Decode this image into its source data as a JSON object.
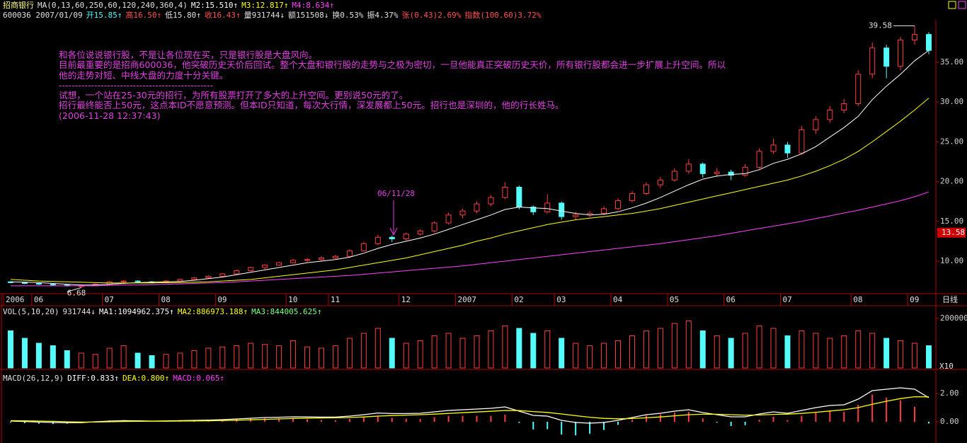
{
  "chart_data": [
    {
      "type": "candlestick",
      "header": [
        [
          {
            "text": "招商银行",
            "color": "#ffff80"
          },
          {
            "text": "MA(0,13,60,250,60,120,240,360,4)",
            "color": "#e0e0e0"
          },
          {
            "text": "M2:15.510↑",
            "color": "#ffffff"
          },
          {
            "text": "M3:12.817↑",
            "color": "#ffff00"
          },
          {
            "text": "M4:8.634↑",
            "color": "#ff40ff"
          }
        ],
        [
          {
            "text": "600036 2007/01/09",
            "color": "#e0e0e0"
          },
          {
            "text": "开15.85↑",
            "color": "#54fcfc"
          },
          {
            "text": "高16.50↑",
            "color": "#ff5050"
          },
          {
            "text": "低15.80↑",
            "color": "#e0e0e0"
          },
          {
            "text": "收16.43↑",
            "color": "#ff5050"
          },
          {
            "text": "量931744↓",
            "color": "#e0e0e0"
          },
          {
            "text": "额151508↓",
            "color": "#e0e0e0"
          },
          {
            "text": "换0.53%",
            "color": "#e0e0e0"
          },
          {
            "text": "振4.37%",
            "color": "#e0e0e0"
          },
          {
            "text": "张(0.43)2.69%",
            "color": "#ff5050"
          },
          {
            "text": "指数(100.60)3.72%",
            "color": "#ff5050"
          }
        ]
      ],
      "comment_lines": [
        "和各位说说银行股，不是让各位现在买，只是银行股是大盘风向。",
        "目前最重要的是招商600036，他突破历史天价后回试。整个大盘和银行股的走势与之极为密切，一旦他能真正突破历史天价，所有银行股都会进一步扩展上升空间。所以",
        "他的走势对短、中线大盘的力度十分关键。",
        "------------------------------------------------",
        "试想，一个站在25-30元的招行，为所有股票打开了多大的上升空间。更别说50元的了。",
        "招行最终能否上50元，这点本ID不愿意预测。但本ID只知道，每次大行情，深发展都上50元。招行也是深圳的，他的行长姓马。",
        "(2006-11-28 12:37:43)"
      ],
      "callout": "06/11/28",
      "period_label": "日线",
      "high_label": "39.58",
      "low_label": "6.68",
      "last_price": {
        "value": 13.58,
        "label": "13.58"
      },
      "categories": [
        "2006",
        null,
        "06",
        null,
        null,
        null,
        null,
        "07",
        null,
        null,
        null,
        "08",
        null,
        null,
        null,
        "09",
        null,
        null,
        null,
        null,
        "10",
        null,
        null,
        "11",
        null,
        null,
        null,
        null,
        "12",
        null,
        null,
        null,
        "2007",
        null,
        null,
        null,
        "02",
        null,
        null,
        "03",
        null,
        null,
        null,
        "04",
        null,
        null,
        null,
        "05",
        null,
        null,
        null,
        "06",
        null,
        null,
        null,
        "07",
        null,
        null,
        null,
        null,
        "08",
        null,
        null,
        null,
        "09",
        null
      ],
      "open": [
        7.4,
        7.3,
        7.2,
        7.1,
        7.0,
        6.9,
        6.9,
        7.1,
        7.4,
        7.5,
        7.4,
        7.3,
        7.5,
        7.7,
        7.9,
        8.1,
        8.4,
        8.8,
        9.2,
        9.5,
        9.8,
        10.1,
        10.2,
        10.4,
        10.6,
        11.3,
        12.2,
        13.0,
        12.8,
        13.4,
        13.8,
        14.8,
        15.8,
        16.3,
        17.2,
        18.0,
        19.3,
        16.8,
        16.2,
        17.3,
        15.6,
        15.8,
        16.0,
        16.6,
        17.6,
        18.5,
        19.6,
        20.2,
        21.3,
        22.2,
        21.0,
        21.2,
        20.8,
        21.8,
        23.8,
        24.6,
        23.6,
        26.5,
        27.8,
        29.0,
        29.8,
        33.5,
        36.8,
        34.5,
        37.8,
        38.5
      ],
      "high": [
        7.5,
        7.4,
        7.3,
        7.2,
        7.1,
        7.0,
        7.2,
        7.5,
        7.6,
        7.6,
        7.5,
        7.6,
        7.8,
        8.0,
        8.2,
        8.5,
        8.9,
        9.3,
        9.6,
        9.9,
        10.3,
        10.4,
        10.6,
        10.8,
        11.5,
        12.4,
        13.3,
        13.2,
        13.6,
        14.0,
        15.0,
        16.1,
        16.6,
        17.5,
        18.3,
        19.9,
        19.5,
        17.0,
        18.4,
        17.5,
        16.2,
        16.3,
        16.9,
        17.9,
        18.8,
        19.9,
        20.6,
        21.7,
        22.8,
        22.4,
        21.7,
        21.5,
        22.2,
        24.2,
        25.4,
        25.0,
        27.0,
        28.2,
        29.5,
        30.4,
        34.0,
        37.5,
        37.2,
        38.2,
        39.58,
        38.8
      ],
      "low": [
        7.2,
        7.1,
        7.0,
        6.9,
        6.8,
        6.68,
        6.85,
        7.0,
        7.3,
        7.3,
        7.2,
        7.2,
        7.4,
        7.6,
        7.8,
        8.0,
        8.3,
        8.7,
        9.0,
        9.4,
        9.7,
        9.9,
        10.0,
        10.3,
        10.5,
        11.2,
        12.0,
        12.4,
        12.6,
        13.2,
        13.6,
        14.6,
        15.4,
        16.0,
        16.9,
        17.8,
        16.5,
        15.8,
        16.0,
        15.2,
        15.2,
        15.5,
        15.8,
        16.4,
        17.4,
        18.3,
        19.2,
        20.0,
        21.0,
        20.5,
        20.6,
        20.2,
        20.6,
        21.6,
        23.5,
        23.0,
        23.4,
        26.0,
        27.4,
        28.6,
        29.5,
        33.0,
        33.0,
        34.0,
        37.2,
        36.0
      ],
      "close": [
        7.3,
        7.2,
        7.1,
        7.0,
        6.9,
        6.9,
        7.1,
        7.4,
        7.5,
        7.4,
        7.3,
        7.5,
        7.7,
        7.9,
        8.1,
        8.4,
        8.8,
        9.2,
        9.5,
        9.8,
        10.1,
        10.2,
        10.4,
        10.6,
        11.3,
        12.2,
        13.0,
        12.8,
        13.4,
        13.8,
        14.8,
        15.8,
        16.3,
        17.2,
        18.0,
        19.3,
        16.8,
        16.2,
        17.3,
        15.6,
        15.8,
        16.0,
        16.6,
        17.6,
        18.5,
        19.6,
        20.2,
        21.3,
        22.2,
        21.0,
        21.2,
        20.8,
        21.8,
        23.8,
        24.6,
        23.6,
        26.5,
        27.8,
        29.0,
        29.8,
        33.5,
        36.8,
        34.5,
        37.8,
        38.5,
        36.5
      ],
      "up_color": "#ff3c3c",
      "down_color": "#54fcfc",
      "series": [
        {
          "color": "#ffffff",
          "values": [
            7.4,
            7.35,
            7.3,
            7.2,
            7.1,
            7.0,
            7.0,
            7.1,
            7.2,
            7.3,
            7.35,
            7.4,
            7.45,
            7.6,
            7.8,
            8.0,
            8.3,
            8.6,
            8.9,
            9.2,
            9.5,
            9.8,
            10.0,
            10.2,
            10.5,
            11.0,
            11.6,
            12.1,
            12.5,
            12.9,
            13.4,
            14.0,
            14.6,
            15.2,
            15.8,
            16.5,
            16.8,
            16.7,
            16.6,
            16.3,
            16.0,
            15.8,
            15.9,
            16.2,
            16.7,
            17.3,
            18.0,
            18.8,
            19.6,
            20.3,
            20.7,
            20.9,
            21.0,
            21.5,
            22.3,
            22.8,
            23.5,
            24.4,
            25.6,
            26.8,
            28.2,
            30.3,
            32.0,
            33.5,
            35.2,
            36.5
          ]
        },
        {
          "color": "#ffff00",
          "values": [
            7.7,
            7.6,
            7.5,
            7.45,
            7.4,
            7.35,
            7.3,
            7.25,
            7.25,
            7.25,
            7.25,
            7.3,
            7.3,
            7.35,
            7.4,
            7.5,
            7.6,
            7.7,
            7.9,
            8.1,
            8.3,
            8.5,
            8.7,
            8.9,
            9.2,
            9.5,
            9.8,
            10.1,
            10.4,
            10.8,
            11.2,
            11.6,
            12.0,
            12.5,
            12.9,
            13.4,
            13.8,
            14.2,
            14.6,
            14.9,
            15.2,
            15.4,
            15.6,
            15.8,
            16.0,
            16.3,
            16.6,
            17.0,
            17.4,
            17.8,
            18.2,
            18.6,
            19.0,
            19.4,
            19.8,
            20.2,
            20.7,
            21.3,
            22.0,
            22.8,
            23.8,
            25.0,
            26.3,
            27.6,
            29.0,
            30.5
          ]
        },
        {
          "color": "#ff40ff",
          "values": [
            6.9,
            6.9,
            6.9,
            6.9,
            6.9,
            6.9,
            6.9,
            6.95,
            7.0,
            7.0,
            7.05,
            7.1,
            7.15,
            7.2,
            7.25,
            7.3,
            7.4,
            7.5,
            7.6,
            7.7,
            7.8,
            7.9,
            8.0,
            8.1,
            8.2,
            8.35,
            8.5,
            8.65,
            8.8,
            8.95,
            9.1,
            9.25,
            9.4,
            9.6,
            9.8,
            10.0,
            10.2,
            10.4,
            10.6,
            10.8,
            11.0,
            11.2,
            11.4,
            11.6,
            11.8,
            12.0,
            12.2,
            12.45,
            12.7,
            12.95,
            13.2,
            13.5,
            13.8,
            14.1,
            14.4,
            14.7,
            15.0,
            15.35,
            15.7,
            16.05,
            16.4,
            16.8,
            17.2,
            17.6,
            18.1,
            18.7
          ]
        }
      ],
      "ylim": [
        5.91,
        40.16
      ],
      "yticks": [
        {
          "value": 10,
          "label": "10.00"
        },
        {
          "value": 15,
          "label": "15.00"
        },
        {
          "value": 20,
          "label": "20.00"
        },
        {
          "value": 25,
          "label": "25.00"
        },
        {
          "value": 30,
          "label": "30.00"
        },
        {
          "value": 35,
          "label": "35.00"
        }
      ]
    },
    {
      "type": "bar",
      "header": [
        [
          {
            "text": "VOL(5,10,20)",
            "color": "#e0e0e0"
          },
          {
            "text": "931744↓",
            "color": "#e0e0e0"
          },
          {
            "text": "MA1:1094962.375↑",
            "color": "#ffffff"
          },
          {
            "text": "MA2:886973.188↑",
            "color": "#ffff00"
          },
          {
            "text": "MA3:844005.625↑",
            "color": "#80ff80"
          }
        ]
      ],
      "unit_label": "X10",
      "values": [
        150000,
        120000,
        100000,
        90000,
        70000,
        60000,
        55000,
        80000,
        90000,
        60000,
        50000,
        55000,
        60000,
        70000,
        80000,
        85000,
        90000,
        100000,
        95000,
        90000,
        110000,
        85000,
        80000,
        90000,
        120000,
        140000,
        160000,
        120000,
        100000,
        110000,
        130000,
        140000,
        120000,
        130000,
        150000,
        170000,
        160000,
        140000,
        150000,
        120000,
        100000,
        90000,
        100000,
        110000,
        130000,
        150000,
        160000,
        180000,
        190000,
        150000,
        130000,
        120000,
        140000,
        170000,
        160000,
        130000,
        150000,
        140000,
        120000,
        130000,
        150000,
        140000,
        120000,
        110000,
        100000,
        90000
      ],
      "ylim": [
        0,
        251400
      ],
      "yticks": [
        200000
      ]
    },
    {
      "type": "macd",
      "header": [
        [
          {
            "text": "MACD(26,12,9)",
            "color": "#e0e0e0"
          },
          {
            "text": "DIFF:0.833↑",
            "color": "#ffffff"
          },
          {
            "text": "DEA:0.800↑",
            "color": "#ffff00"
          },
          {
            "text": "MACD:0.065↑",
            "color": "#ff40ff"
          }
        ]
      ],
      "up_color": "#ff3c3c",
      "down_color": "#54fcfc",
      "values": [
        -0.06,
        -0.1,
        -0.14,
        -0.16,
        -0.14,
        -0.08,
        0.04,
        0.1,
        0.12,
        0.08,
        0.02,
        0.04,
        0.06,
        0.08,
        0.1,
        0.12,
        0.18,
        0.22,
        0.26,
        0.24,
        0.24,
        0.18,
        0.12,
        0.1,
        0.2,
        0.32,
        0.44,
        0.28,
        0.22,
        0.2,
        0.32,
        0.42,
        0.42,
        0.42,
        0.42,
        0.5,
        -0.08,
        -0.54,
        -0.52,
        -0.9,
        -0.96,
        -0.84,
        -0.58,
        -0.22,
        0.14,
        0.44,
        0.52,
        0.66,
        0.7,
        0.24,
        -0.06,
        -0.3,
        -0.24,
        0.14,
        0.36,
        0.12,
        0.42,
        0.66,
        0.78,
        0.7,
        1.2,
        1.92,
        1.7,
        1.52,
        1.06,
        -0.12
      ],
      "series": [
        {
          "color": "#ffffff",
          "values": [
            0.05,
            0.02,
            -0.02,
            -0.05,
            -0.07,
            -0.06,
            0.0,
            0.05,
            0.08,
            0.07,
            0.05,
            0.06,
            0.08,
            0.1,
            0.12,
            0.15,
            0.2,
            0.25,
            0.3,
            0.32,
            0.35,
            0.34,
            0.33,
            0.33,
            0.4,
            0.5,
            0.62,
            0.58,
            0.58,
            0.6,
            0.7,
            0.8,
            0.85,
            0.9,
            0.95,
            1.05,
            0.75,
            0.45,
            0.4,
            0.1,
            -0.05,
            -0.1,
            -0.05,
            0.1,
            0.3,
            0.5,
            0.6,
            0.75,
            0.85,
            0.65,
            0.5,
            0.35,
            0.35,
            0.55,
            0.7,
            0.6,
            0.8,
            1.0,
            1.15,
            1.2,
            1.6,
            2.2,
            2.3,
            2.4,
            2.3,
            1.7
          ]
        },
        {
          "color": "#ffff00",
          "values": [
            0.08,
            0.07,
            0.05,
            0.03,
            0.0,
            -0.02,
            -0.02,
            0.0,
            0.02,
            0.03,
            0.04,
            0.04,
            0.05,
            0.06,
            0.07,
            0.09,
            0.11,
            0.14,
            0.17,
            0.2,
            0.23,
            0.25,
            0.27,
            0.28,
            0.3,
            0.34,
            0.4,
            0.44,
            0.47,
            0.5,
            0.54,
            0.59,
            0.64,
            0.69,
            0.74,
            0.8,
            0.79,
            0.72,
            0.66,
            0.55,
            0.43,
            0.32,
            0.24,
            0.21,
            0.23,
            0.28,
            0.34,
            0.42,
            0.5,
            0.53,
            0.53,
            0.5,
            0.47,
            0.48,
            0.52,
            0.54,
            0.59,
            0.67,
            0.76,
            0.85,
            1.0,
            1.24,
            1.45,
            1.64,
            1.77,
            1.76
          ]
        }
      ],
      "ylim": [
        -1.5,
        3.55
      ],
      "yticks": [
        {
          "value": 0,
          "label": "0.00"
        },
        {
          "value": 2,
          "label": "2.00"
        }
      ]
    }
  ]
}
